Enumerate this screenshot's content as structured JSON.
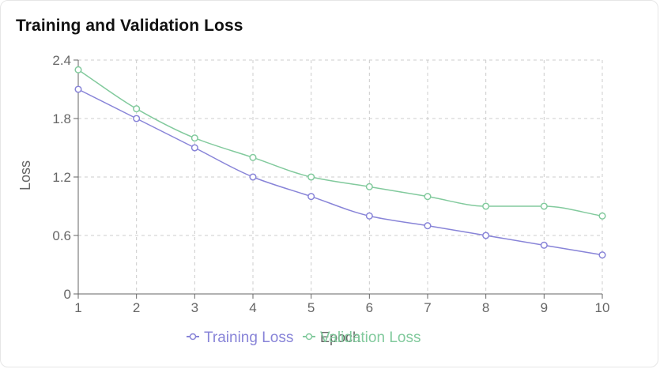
{
  "title": "Training and Validation Loss",
  "chart_data": {
    "type": "line",
    "title": "Training and Validation Loss",
    "xlabel": "Epoch",
    "ylabel": "Loss",
    "x": [
      1,
      2,
      3,
      4,
      5,
      6,
      7,
      8,
      9,
      10
    ],
    "x_ticks": [
      "1",
      "2",
      "3",
      "4",
      "5",
      "6",
      "7",
      "8",
      "9",
      "10"
    ],
    "y_ticks": [
      "0",
      "0.6",
      "1.2",
      "1.8",
      "2.4"
    ],
    "ylim": [
      0,
      2.4
    ],
    "grid": true,
    "grid_style": "dashed",
    "legend_position": "bottom",
    "series": [
      {
        "name": "Training Loss",
        "color": "#8884d8",
        "values": [
          2.1,
          1.8,
          1.5,
          1.2,
          1.0,
          0.8,
          0.7,
          0.6,
          0.5,
          0.4
        ]
      },
      {
        "name": "Validation Loss",
        "color": "#82ca9d",
        "values": [
          2.3,
          1.9,
          1.6,
          1.4,
          1.2,
          1.1,
          1.0,
          0.9,
          0.9,
          0.8
        ]
      }
    ]
  }
}
